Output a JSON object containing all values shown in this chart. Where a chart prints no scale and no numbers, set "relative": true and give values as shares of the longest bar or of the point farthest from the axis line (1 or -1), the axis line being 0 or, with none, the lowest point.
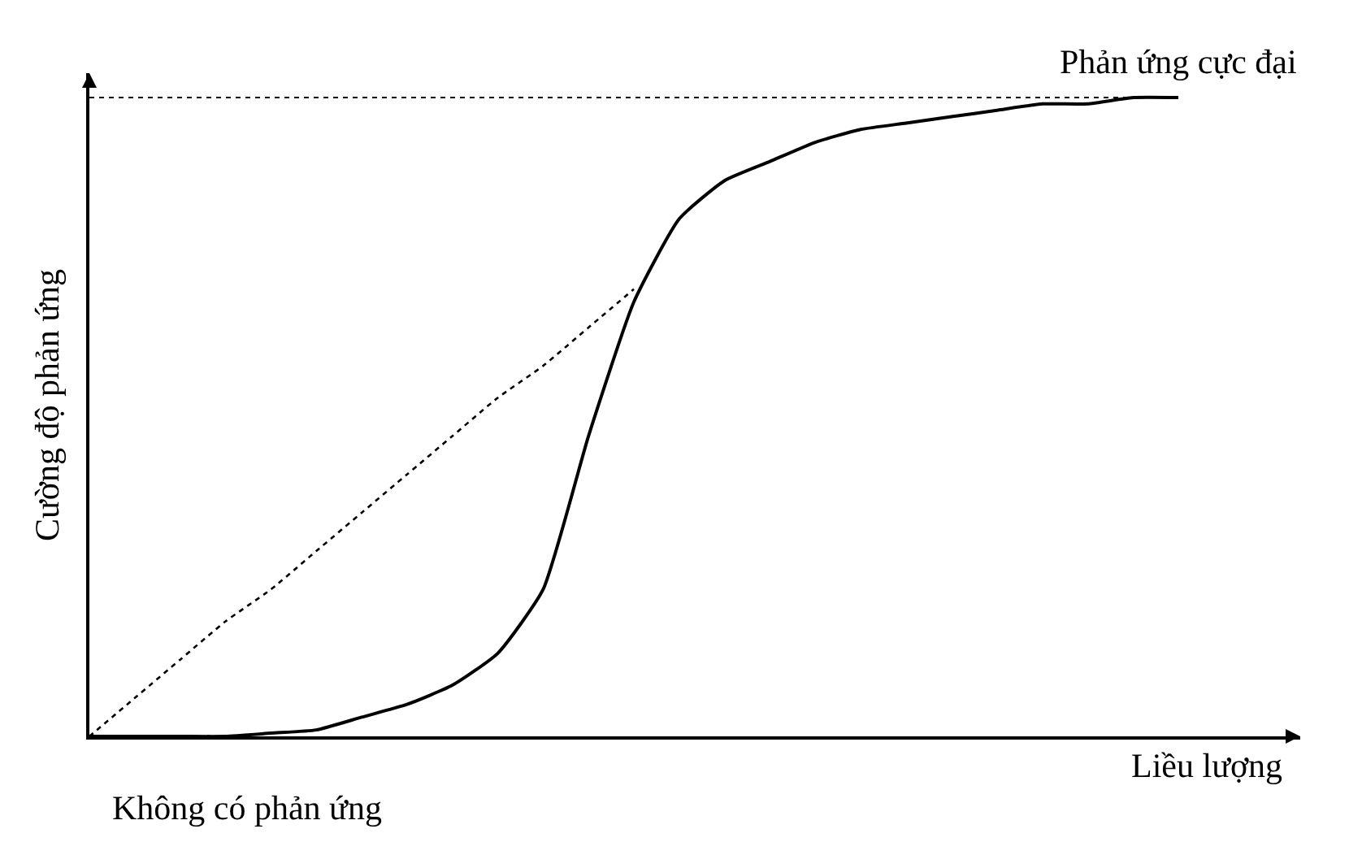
{
  "chart_data": {
    "type": "line",
    "relative": true,
    "ylabel": "Cường độ phản ứng",
    "xlabel": "Liều lượng",
    "categories": [
      null,
      null,
      null,
      null,
      null,
      null,
      null,
      null,
      null,
      null,
      null,
      null,
      null,
      null,
      null,
      null,
      null,
      null,
      null,
      null,
      null,
      null,
      null,
      null,
      null
    ],
    "series": [
      {
        "color": "#000000",
        "line_style": "solid",
        "values": [
          0,
          0,
          0,
          0,
          0.005,
          0.01,
          0.03,
          0.05,
          0.08,
          0.13,
          0.23,
          0.47,
          0.68,
          0.81,
          0.87,
          0.9,
          0.93,
          0.95,
          0.96,
          0.97,
          0.98,
          0.99,
          0.99,
          1,
          1
        ]
      },
      {
        "color": "#000000",
        "line_style": "dotted",
        "values": [
          0,
          0.06,
          0.12,
          0.18,
          0.23,
          0.29,
          0.35,
          0.41,
          0.47,
          0.53,
          0.58,
          0.64,
          0.7,
          null,
          null,
          null,
          null,
          null,
          null,
          null,
          null,
          null,
          null,
          null,
          null
        ]
      }
    ],
    "ref_lines": [
      {
        "axis": "y",
        "value": 1,
        "label": "Phản ứng cực đại",
        "color": "#000000",
        "line_style": "dotted"
      }
    ],
    "annotations": [
      "Không có phản ứng"
    ]
  }
}
